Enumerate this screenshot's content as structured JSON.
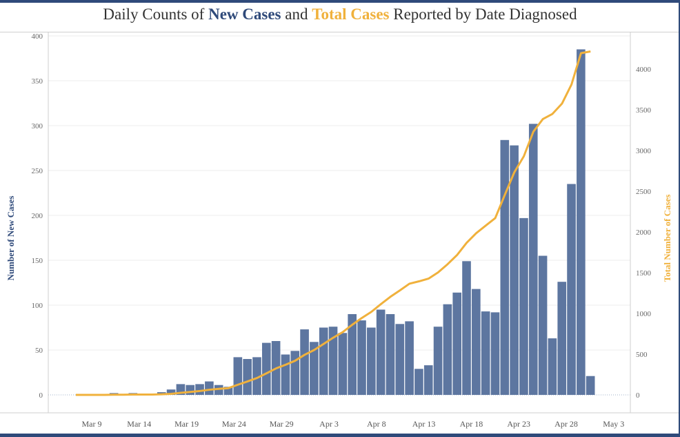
{
  "title": {
    "prefix": "Daily Counts of ",
    "new_label": "New Cases",
    "middle": " and ",
    "total_label": "Total Cases",
    "suffix": " Reported by Date Diagnosed"
  },
  "colors": {
    "bar": "#5d76a0",
    "line": "#f0b13c",
    "accent_dark": "#2f4a7a"
  },
  "chart_data": {
    "type": "bar",
    "title": "Daily Counts of New Cases and Total Cases Reported by Date Diagnosed",
    "xlabel": "",
    "ylabel": "Number of New Cases",
    "y2label": "Total Number of Cases",
    "ylim": [
      0,
      400
    ],
    "y2lim": [
      0,
      4400
    ],
    "yticks": [
      0,
      50,
      100,
      150,
      200,
      250,
      300,
      350,
      400
    ],
    "y2ticks": [
      0,
      500,
      1000,
      1500,
      2000,
      2500,
      3000,
      3500,
      4000
    ],
    "xtick_labels": [
      "Mar 9",
      "Mar 14",
      "Mar 19",
      "Mar 24",
      "Mar 29",
      "Apr 3",
      "Apr 8",
      "Apr 13",
      "Apr 18",
      "Apr 23",
      "Apr 28",
      "May 3"
    ],
    "xtick_day_index": [
      2,
      7,
      12,
      17,
      22,
      27,
      32,
      37,
      42,
      47,
      52,
      57
    ],
    "start_date": "Mar 7",
    "grid": true,
    "series": [
      {
        "name": "New Cases",
        "type": "bar",
        "values": [
          0,
          0,
          0,
          0,
          2,
          0,
          2,
          0,
          0,
          3,
          6,
          12,
          11,
          12,
          15,
          11,
          9,
          42,
          40,
          42,
          58,
          60,
          45,
          49,
          73,
          59,
          75,
          76,
          69,
          90,
          83,
          75,
          95,
          90,
          79,
          82,
          29,
          33,
          76,
          101,
          114,
          149,
          118,
          93,
          92,
          284,
          278,
          197,
          302,
          155,
          63,
          126,
          235,
          385,
          21
        ]
      },
      {
        "name": "Total Cases",
        "type": "line",
        "axis": "right",
        "values": "cumulative sum of New Cases"
      }
    ]
  }
}
